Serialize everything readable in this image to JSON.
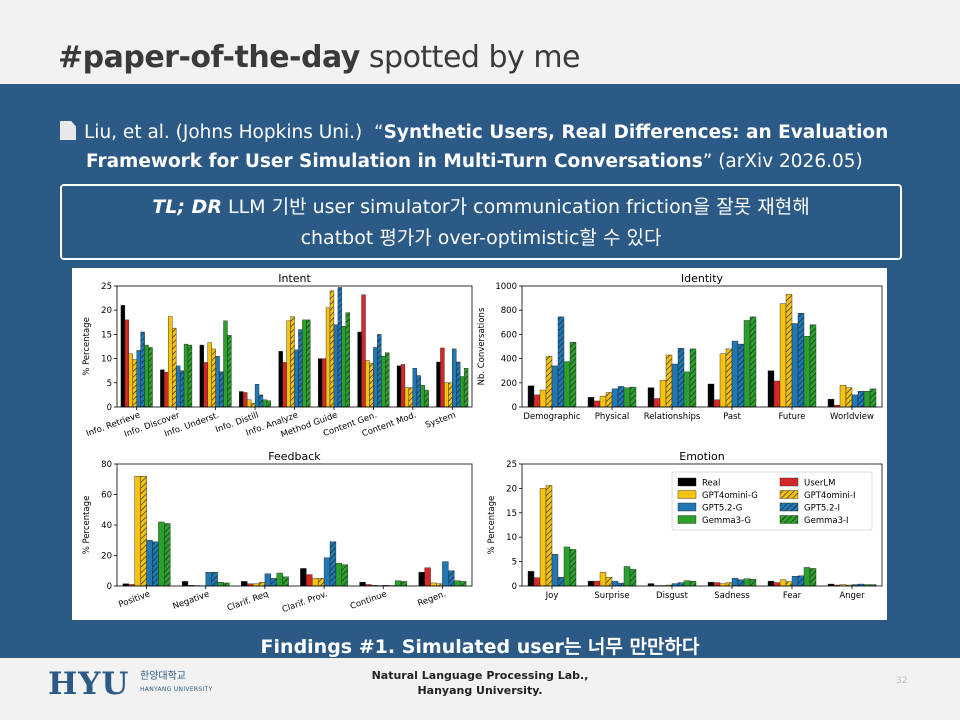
{
  "header": {
    "title_bold": "#paper-of-the-day",
    "title_rest": " spotted by me"
  },
  "paper": {
    "authors": "Liu, et al. (Johns Hopkins Uni.)",
    "quote_open": "“",
    "title_line1": "Synthetic Users, Real Differences: an Evaluation",
    "title_line2": "Framework for User Simulation in Multi-Turn Conversations",
    "quote_close": "”",
    "venue": "(arXiv 2026.05)"
  },
  "tldr": {
    "label": "TL; DR",
    "line1": "LLM 기반 user simulator가 communication friction을 잘못 재현해",
    "line2": "chatbot 평가가 over-optimistic할 수 있다"
  },
  "findings": "Findings #1. Simulated user는 너무 만만하다",
  "footer": {
    "logo": "HYU",
    "logo_ko": "한양대학교",
    "logo_en": "HANYANG UNIVERSITY",
    "lab_line1": "Natural Language Processing Lab.,",
    "lab_line2": "Hanyang University.",
    "page": "32"
  },
  "chart_data": [
    {
      "type": "bar",
      "title": "Intent",
      "ylabel": "% Percentage",
      "ylim": [
        0,
        25
      ],
      "yticks": [
        0,
        5,
        10,
        15,
        20,
        25
      ],
      "categories": [
        "Info. Retrieve",
        "Info. Discover",
        "Info. Underst.",
        "Info. Distill",
        "Info. Analyze",
        "Method Guide",
        "Content Gen.",
        "Content Mod.",
        "System"
      ],
      "series": [
        {
          "name": "Real",
          "values": [
            21,
            7.7,
            12.8,
            3.2,
            11.5,
            10,
            15.5,
            8.5,
            9.3
          ]
        },
        {
          "name": "UserLM",
          "values": [
            18,
            7.2,
            9.2,
            3,
            9.2,
            10,
            23.2,
            8.8,
            12.2
          ]
        },
        {
          "name": "GPT4omini-G",
          "values": [
            11,
            18.7,
            13.3,
            1.5,
            17.8,
            20.5,
            9.6,
            4,
            5
          ]
        },
        {
          "name": "GPT4omini-I",
          "values": [
            9.8,
            16.3,
            12,
            0.8,
            18.7,
            24,
            9,
            4,
            5
          ]
        },
        {
          "name": "GPT5.2-G",
          "values": [
            11.7,
            8.5,
            10.5,
            4.7,
            11.8,
            17,
            12.3,
            8,
            12
          ]
        },
        {
          "name": "GPT5.2-I",
          "values": [
            15.5,
            7.5,
            7.3,
            2.5,
            16,
            24.7,
            15,
            6.5,
            9.3
          ]
        },
        {
          "name": "Gemma3-G",
          "values": [
            12.8,
            13,
            17.8,
            1.5,
            18,
            16.7,
            10.5,
            4.5,
            6.3
          ]
        },
        {
          "name": "Gemma3-I",
          "values": [
            12.3,
            12.8,
            14.8,
            1.3,
            18,
            19.5,
            11.2,
            3.5,
            8
          ]
        }
      ]
    },
    {
      "type": "bar",
      "title": "Identity",
      "ylabel": "Nb. Conversations",
      "ylim": [
        0,
        1000
      ],
      "yticks": [
        0,
        200,
        400,
        600,
        800,
        1000
      ],
      "categories": [
        "Demographic",
        "Physical",
        "Relationships",
        "Past",
        "Future",
        "Worldview"
      ],
      "series": [
        {
          "name": "Real",
          "values": [
            175,
            80,
            160,
            190,
            300,
            65
          ]
        },
        {
          "name": "UserLM",
          "values": [
            100,
            50,
            70,
            60,
            215,
            15
          ]
        },
        {
          "name": "GPT4omini-G",
          "values": [
            140,
            90,
            220,
            440,
            855,
            180
          ]
        },
        {
          "name": "GPT4omini-I",
          "values": [
            420,
            120,
            430,
            480,
            930,
            160
          ]
        },
        {
          "name": "GPT5.2-G",
          "values": [
            340,
            150,
            355,
            545,
            690,
            100
          ]
        },
        {
          "name": "GPT5.2-I",
          "values": [
            745,
            170,
            485,
            520,
            775,
            130
          ]
        },
        {
          "name": "Gemma3-G",
          "values": [
            375,
            160,
            290,
            715,
            585,
            130
          ]
        },
        {
          "name": "Gemma3-I",
          "values": [
            535,
            165,
            480,
            745,
            680,
            150
          ]
        }
      ]
    },
    {
      "type": "bar",
      "title": "Feedback",
      "ylabel": "% Percentage",
      "ylim": [
        0,
        80
      ],
      "yticks": [
        0,
        20,
        40,
        60,
        80
      ],
      "categories": [
        "Positive",
        "Negative",
        "Clarif. Req",
        "Clarif. Prov.",
        "Continue",
        "Regen."
      ],
      "series": [
        {
          "name": "Real",
          "values": [
            1.5,
            3,
            3,
            11.5,
            2.5,
            9
          ]
        },
        {
          "name": "UserLM",
          "values": [
            1,
            0.5,
            1.5,
            7.5,
            1,
            12
          ]
        },
        {
          "name": "GPT4omini-G",
          "values": [
            72,
            0.3,
            1.5,
            5,
            0.5,
            2
          ]
        },
        {
          "name": "GPT4omini-I",
          "values": [
            72,
            0.2,
            2.5,
            5,
            0.3,
            1.5
          ]
        },
        {
          "name": "GPT5.2-G",
          "values": [
            30,
            9,
            8,
            18.5,
            0.5,
            16
          ]
        },
        {
          "name": "GPT5.2-I",
          "values": [
            29,
            9,
            5,
            29,
            0.3,
            10
          ]
        },
        {
          "name": "Gemma3-G",
          "values": [
            42,
            2.5,
            8.5,
            15,
            3.5,
            3.5
          ]
        },
        {
          "name": "Gemma3-I",
          "values": [
            41,
            2,
            6,
            14,
            3,
            3
          ]
        }
      ]
    },
    {
      "type": "bar",
      "title": "Emotion",
      "ylabel": "% Percentage",
      "ylim": [
        0,
        25
      ],
      "yticks": [
        0,
        5,
        10,
        15,
        20,
        25
      ],
      "categories": [
        "Joy",
        "Surprise",
        "Disgust",
        "Sadness",
        "Fear",
        "Anger"
      ],
      "legend_position": "top-right",
      "series": [
        {
          "name": "Real",
          "values": [
            3,
            1,
            0.5,
            0.8,
            1,
            0.4
          ]
        },
        {
          "name": "UserLM",
          "values": [
            1.7,
            1,
            0.1,
            0.7,
            0.7,
            0.2
          ]
        },
        {
          "name": "GPT4omini-G",
          "values": [
            20,
            2.8,
            0.1,
            0.5,
            1.3,
            0.3
          ]
        },
        {
          "name": "GPT4omini-I",
          "values": [
            20.6,
            1.8,
            0.2,
            0.7,
            0.9,
            0.2
          ]
        },
        {
          "name": "GPT5.2-G",
          "values": [
            6.5,
            1,
            0.5,
            1.6,
            2,
            0.3
          ]
        },
        {
          "name": "GPT5.2-I",
          "values": [
            1.8,
            0.6,
            0.7,
            1.3,
            2.1,
            0.4
          ]
        },
        {
          "name": "Gemma3-G",
          "values": [
            8,
            4,
            1.1,
            1.5,
            3.8,
            0.3
          ]
        },
        {
          "name": "Gemma3-I",
          "values": [
            7.5,
            3.4,
            1,
            1.4,
            3.6,
            0.3
          ]
        }
      ]
    }
  ],
  "series_style": [
    {
      "color": "#000000",
      "hatch": false
    },
    {
      "color": "#d62728",
      "hatch": false
    },
    {
      "color": "#f5c211",
      "hatch": false
    },
    {
      "color": "#f5c211",
      "hatch": true
    },
    {
      "color": "#1f77b4",
      "hatch": false
    },
    {
      "color": "#1f77b4",
      "hatch": true
    },
    {
      "color": "#2ca02c",
      "hatch": false
    },
    {
      "color": "#2ca02c",
      "hatch": true
    }
  ]
}
